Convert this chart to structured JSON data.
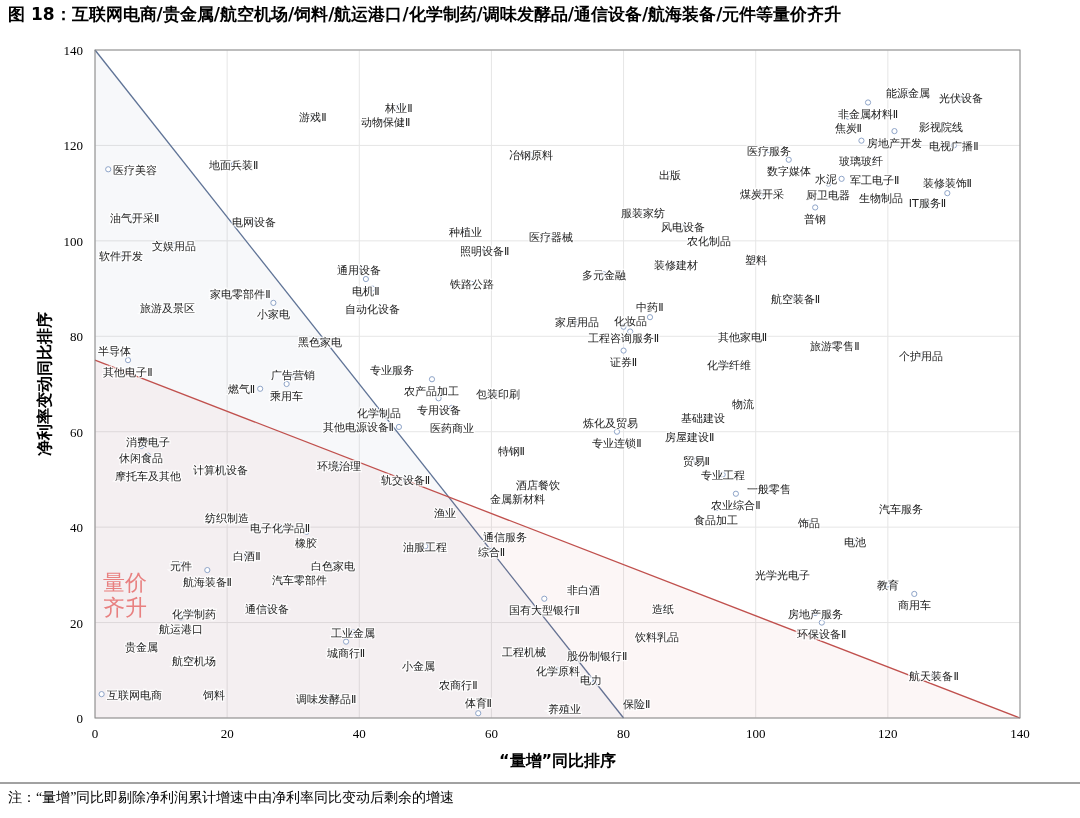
{
  "chart_data": {
    "type": "scatter",
    "title": "图 18：互联网电商/贵金属/航空机场/饲料/航运港口/化学制药/调味发酵品/通信设备/航海装备/元件等量价齐升",
    "xlabel": "“量增”同比排序",
    "ylabel": "净利率变动同比排序",
    "xlim": [
      0,
      140
    ],
    "ylim": [
      0,
      140
    ],
    "xticks": [
      0,
      20,
      40,
      60,
      80,
      100,
      120,
      140
    ],
    "yticks": [
      0,
      20,
      40,
      60,
      80,
      100,
      120,
      140
    ],
    "grid": true,
    "annotations": [
      "量价齐升",
      "注：“量增”同比即剔除净利润累计增速中由净利率同比变动后剩余的增速"
    ],
    "series": [
      {
        "type": "area",
        "color": "#5f7396",
        "x": [
          0,
          80
        ],
        "values": [
          140,
          0
        ]
      },
      {
        "type": "area",
        "color": "#c0504d",
        "x": [
          0,
          140
        ],
        "values": [
          75,
          0
        ]
      },
      {
        "marker": "circle",
        "color": "#8ea4c8",
        "x": [
          123,
          131,
          117,
          114,
          128,
          121,
          116,
          130,
          118,
          102,
          105,
          113,
          111,
          101,
          119,
          126,
          129,
          109,
          100,
          106,
          98,
          112,
          125,
          96,
          87,
          83,
          89,
          93,
          88,
          77,
          69,
          56,
          59,
          57,
          66,
          46,
          44,
          33,
          21,
          2,
          6,
          24,
          12,
          4,
          40,
          41,
          42,
          22,
          27,
          11,
          34,
          3,
          5,
          73,
          80,
          81,
          84,
          80,
          45,
          51,
          30,
          29,
          25,
          61,
          52,
          54,
          43,
          46,
          78,
          79,
          92,
          98,
          90,
          63,
          8,
          7,
          8,
          19,
          37,
          47,
          91,
          95,
          102,
          97,
          94,
          67,
          64,
          122,
          108,
          115,
          53,
          20,
          28,
          32,
          50,
          62,
          60,
          23,
          36,
          13,
          17,
          31,
          104,
          120,
          124,
          74,
          68,
          86,
          109,
          110,
          15,
          13,
          26,
          85,
          39,
          38,
          65,
          76,
          49,
          70,
          75,
          55,
          7,
          15,
          1,
          18,
          35,
          58,
          71,
          82,
          127
        ],
        "values": [
          131,
          130,
          129,
          126,
          124,
          123,
          121,
          120,
          117,
          119,
          117,
          113,
          112,
          110,
          109,
          108,
          110,
          107,
          96,
          88,
          80,
          78,
          76,
          74,
          114,
          106,
          103,
          100,
          95,
          93,
          101,
          102,
          98,
          91,
          118,
          128,
          125,
          126,
          116,
          115,
          105,
          104,
          99,
          97,
          94,
          92,
          90,
          89,
          87,
          86,
          79,
          77,
          75,
          83,
          82,
          81,
          84,
          77,
          73,
          71,
          72,
          70,
          69,
          68,
          67,
          65,
          64,
          61,
          62,
          60,
          63,
          66,
          59,
          56,
          58,
          57,
          55,
          52,
          53,
          50,
          54,
          51,
          48,
          47,
          44,
          49,
          46,
          44,
          41,
          37,
          43,
          42,
          40,
          39,
          36,
          38,
          35,
          34,
          32,
          32,
          31,
          29,
          30,
          28,
          26,
          27,
          25,
          23,
          22,
          20,
          22,
          21,
          23,
          17,
          18,
          16,
          14,
          13,
          11,
          10,
          8,
          7,
          15,
          12,
          5,
          5,
          4,
          1,
          2,
          3,
          9
        ],
        "value_labels": [
          "能源金属",
          "光伏设备",
          "非金属材料Ⅱ",
          "焦炭Ⅱ",
          "影视院线",
          "房地产开发",
          "玻璃玻纤",
          "电视广播Ⅱ",
          "军工电子Ⅱ",
          "医疗服务",
          "数字媒体",
          "水泥",
          "厨卫电器",
          "煤炭开采",
          "生物制品",
          "IT服务Ⅱ",
          "装修装饰Ⅱ",
          "普钢",
          "塑料",
          "航空装备Ⅱ",
          "其他家电Ⅱ",
          "旅游零售Ⅱ",
          "个护用品",
          "化学纤维",
          "出版",
          "服装家纺",
          "风电设备",
          "农化制品",
          "装修建材",
          "多元金融",
          "医疗器械",
          "种植业",
          "照明设备Ⅱ",
          "铁路公路",
          "冶钢原料",
          "林业Ⅱ",
          "动物保健Ⅱ",
          "游戏Ⅱ",
          "地面兵装Ⅱ",
          "医疗美容",
          "油气开采Ⅱ",
          "电网设备",
          "文娱用品",
          "软件开发",
          "通用设备",
          "电机Ⅱ",
          "自动化设备",
          "家电零部件Ⅱ",
          "小家电",
          "旅游及景区",
          "黑色家电",
          "半导体",
          "其他电子Ⅱ",
          "家居用品",
          "工程咨询服务Ⅱ",
          "化妆品",
          "中药Ⅱ",
          "证券Ⅱ",
          "专业服务",
          "农产品加工",
          "广告营销",
          "乘用车",
          "燃气Ⅱ",
          "包装印刷",
          "专用设备",
          "医药商业",
          "化学制品",
          "其他电源设备Ⅱ",
          "炼化及贸易",
          "专业连锁Ⅱ",
          "基础建设",
          "物流",
          "房屋建设Ⅱ",
          "特钢Ⅱ",
          "消费电子",
          "休闲食品",
          "摩托车及其他",
          "计算机设备",
          "环境治理",
          "轨交设备Ⅱ",
          "贸易Ⅱ",
          "专业工程",
          "一般零售",
          "农业综合Ⅱ",
          "食品加工",
          "酒店餐饮",
          "金属新材料",
          "汽车服务",
          "饰品",
          "电池",
          "渔业",
          "纺织制造",
          "电子化学品Ⅱ",
          "橡胶",
          "油服工程",
          "通信服务",
          "综合Ⅱ",
          "白酒Ⅱ",
          "白色家电",
          "元件",
          "航海装备Ⅱ",
          "汽车零部件",
          "光学光电子",
          "教育",
          "商用车",
          "非白酒",
          "国有大型银行Ⅱ",
          "造纸",
          "房地产服务",
          "环保设备Ⅱ",
          "化学制药",
          "航运港口",
          "通信设备",
          "饮料乳品",
          "工业金属",
          "城商行Ⅱ",
          "工程机械",
          "股份制银行Ⅱ",
          "小金属",
          "化学原料",
          "电力",
          "农商行Ⅱ",
          "贵金属",
          "航空机场",
          "互联网电商",
          "饲料",
          "调味发酵品Ⅱ",
          "体育Ⅱ",
          "养殖业",
          "保险Ⅱ",
          "航天装备Ⅱ"
        ]
      }
    ]
  }
}
